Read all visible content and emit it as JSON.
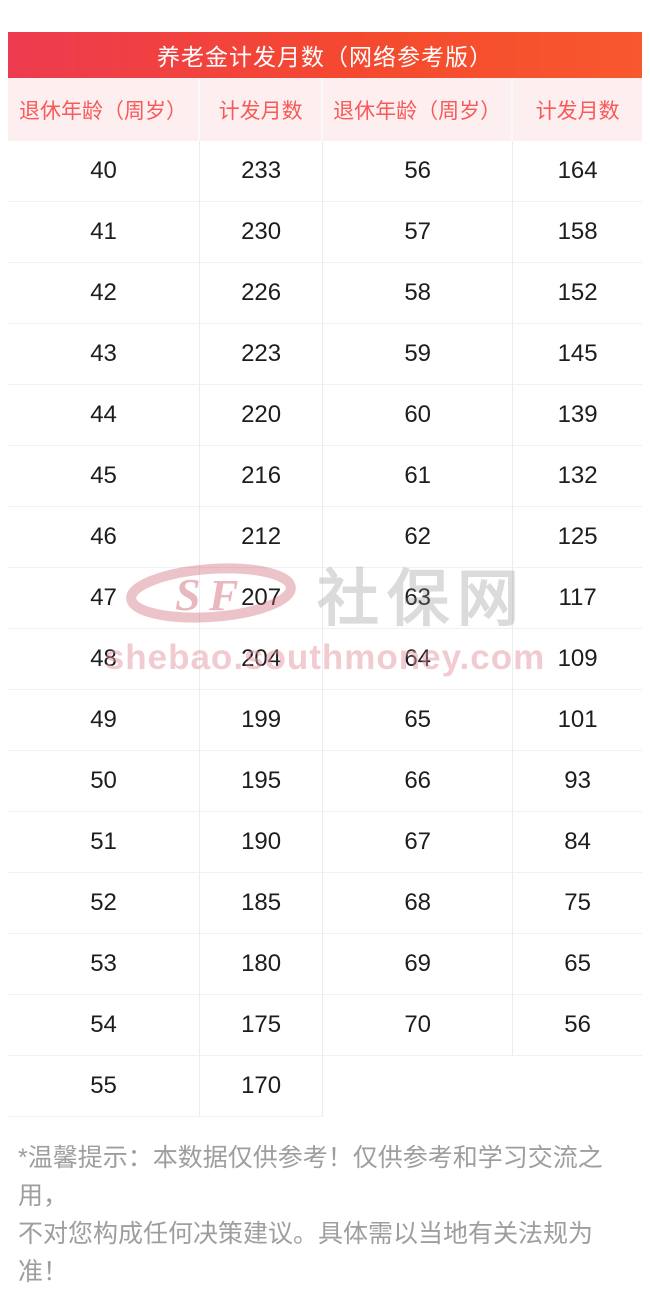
{
  "page": {
    "title": "养老金计发月数（网络参考版）",
    "footer_line1": "*温馨提示：本数据仅供参考！仅供参考和学习交流之用，",
    "footer_line2": "不对您构成任何决策建议。具体需以当地有关法规为准！"
  },
  "table": {
    "headers": [
      "退休年龄（周岁）",
      "计发月数",
      "退休年龄（周岁）",
      "计发月数"
    ],
    "rows": [
      [
        "40",
        "233",
        "56",
        "164"
      ],
      [
        "41",
        "230",
        "57",
        "158"
      ],
      [
        "42",
        "226",
        "58",
        "152"
      ],
      [
        "43",
        "223",
        "59",
        "145"
      ],
      [
        "44",
        "220",
        "60",
        "139"
      ],
      [
        "45",
        "216",
        "61",
        "132"
      ],
      [
        "46",
        "212",
        "62",
        "125"
      ],
      [
        "47",
        "207",
        "63",
        "117"
      ],
      [
        "48",
        "204",
        "64",
        "109"
      ],
      [
        "49",
        "199",
        "65",
        "101"
      ],
      [
        "50",
        "195",
        "66",
        "93"
      ],
      [
        "51",
        "190",
        "67",
        "84"
      ],
      [
        "52",
        "185",
        "68",
        "75"
      ],
      [
        "53",
        "180",
        "69",
        "65"
      ],
      [
        "54",
        "175",
        "70",
        "56"
      ],
      [
        "55",
        "170",
        "",
        ""
      ]
    ]
  },
  "watermark": {
    "logo_text": "SF",
    "brand": "社保网",
    "url": "shebao.southmoney.com"
  },
  "colors": {
    "banner_gradient_start": "#ee3a4f",
    "banner_gradient_end": "#f8582d",
    "header_bg": "#fdefef",
    "header_text": "#f85959",
    "data_text": "#1d1d1d",
    "disclaimer_text": "#9e9e9e"
  }
}
